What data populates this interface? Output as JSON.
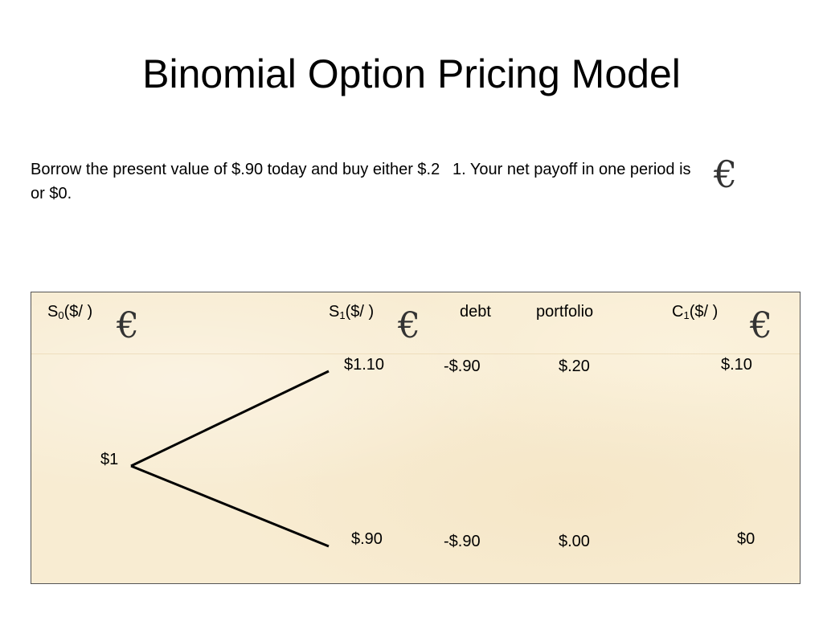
{
  "slide": {
    "title": "Binomial Option Pricing Model",
    "text_left": "Borrow the present value of $.90 today and buy either $.2 or $0.",
    "text_right": "1. Your net payoff in one period is"
  },
  "table": {
    "headers": {
      "s0": "S",
      "s0_sub": "0",
      "s0_unit": "($/  )",
      "s1": "S",
      "s1_sub": "1",
      "s1_unit": "($/  )",
      "debt": "debt",
      "portfolio": "portfolio",
      "c1": "C",
      "c1_sub": "1",
      "c1_unit": "($/   )"
    },
    "root_value": "$1",
    "up_row": {
      "s1": "$1.10",
      "debt": "-$.90",
      "portfolio": "$.20",
      "c1": "$.10"
    },
    "down_row": {
      "s1": "$.90",
      "debt": "-$.90",
      "portfolio": "$.00",
      "c1": "$0"
    }
  },
  "icons": {
    "euro_symbol": "€"
  },
  "colors": {
    "panel_background": "#f8ecd2",
    "euro_color": "#333333"
  }
}
